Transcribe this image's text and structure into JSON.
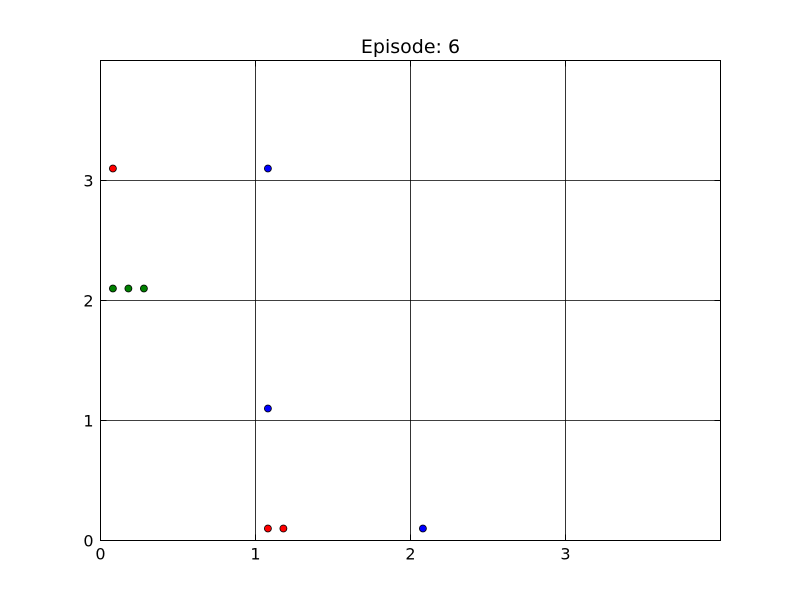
{
  "chart_data": {
    "type": "scatter",
    "title": "Episode: 6",
    "xlabel": "",
    "ylabel": "",
    "xlim": [
      0,
      4
    ],
    "ylim": [
      0,
      4
    ],
    "x_ticks": [
      0,
      1,
      2,
      3
    ],
    "y_ticks": [
      0,
      1,
      2,
      3
    ],
    "grid": true,
    "series": [
      {
        "color": "#ff0000",
        "points": [
          {
            "x": 0.08,
            "y": 3.1
          },
          {
            "x": 1.08,
            "y": 0.1
          },
          {
            "x": 1.18,
            "y": 0.1
          }
        ]
      },
      {
        "color": "#0000ff",
        "points": [
          {
            "x": 1.08,
            "y": 3.1
          },
          {
            "x": 1.08,
            "y": 1.1
          },
          {
            "x": 2.08,
            "y": 0.1
          }
        ]
      },
      {
        "color": "#008000",
        "points": [
          {
            "x": 0.08,
            "y": 2.1
          },
          {
            "x": 0.18,
            "y": 2.1
          },
          {
            "x": 0.28,
            "y": 2.1
          }
        ]
      }
    ]
  }
}
